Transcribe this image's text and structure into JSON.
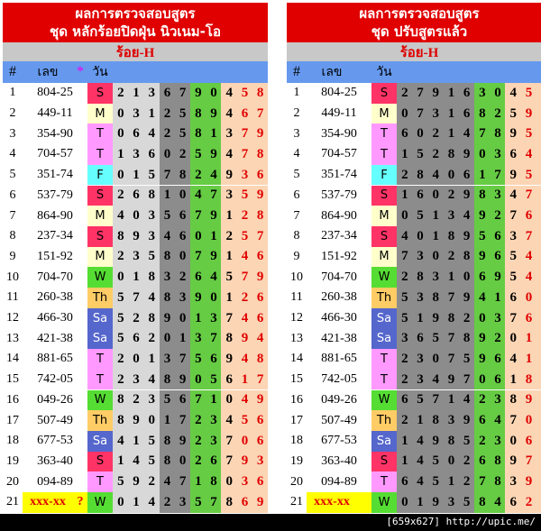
{
  "panels": [
    {
      "title_line1": "ผลการตรวจสอบสูตร",
      "title_line2": "ชุด หลักร้อยปิดฝุ่น นิวเนม-โอ",
      "subtitle": "ร้อย-H",
      "headers": {
        "num": "#",
        "number": "เลข",
        "star": "*",
        "day": "วัน"
      },
      "rows": [
        {
          "n": 1,
          "number": "804-25",
          "day": "S",
          "digits": [
            2,
            1,
            3,
            6,
            7,
            9,
            0,
            4,
            5,
            8
          ]
        },
        {
          "n": 2,
          "number": "449-11",
          "day": "M",
          "digits": [
            0,
            3,
            1,
            2,
            5,
            8,
            9,
            4,
            6,
            7
          ]
        },
        {
          "n": 3,
          "number": "354-90",
          "day": "T",
          "digits": [
            0,
            6,
            4,
            2,
            5,
            8,
            1,
            3,
            7,
            9
          ]
        },
        {
          "n": 4,
          "number": "704-57",
          "day": "T",
          "digits": [
            1,
            3,
            6,
            0,
            2,
            5,
            9,
            4,
            7,
            8
          ]
        },
        {
          "n": 5,
          "number": "351-74",
          "day": "F",
          "digits": [
            0,
            1,
            5,
            7,
            8,
            2,
            4,
            9,
            3,
            6
          ]
        },
        {
          "n": 6,
          "number": "537-79",
          "day": "S",
          "digits": [
            2,
            6,
            8,
            1,
            0,
            4,
            7,
            3,
            5,
            9
          ]
        },
        {
          "n": 7,
          "number": "864-90",
          "day": "M",
          "digits": [
            4,
            0,
            3,
            5,
            6,
            7,
            9,
            1,
            2,
            8
          ]
        },
        {
          "n": 8,
          "number": "237-34",
          "day": "S",
          "digits": [
            8,
            9,
            3,
            4,
            6,
            0,
            1,
            2,
            5,
            7
          ]
        },
        {
          "n": 9,
          "number": "151-92",
          "day": "M",
          "digits": [
            2,
            3,
            5,
            8,
            0,
            7,
            9,
            1,
            4,
            6
          ]
        },
        {
          "n": 10,
          "number": "704-70",
          "day": "W",
          "digits": [
            0,
            1,
            8,
            3,
            2,
            6,
            4,
            5,
            7,
            9
          ]
        },
        {
          "n": 11,
          "number": "260-38",
          "day": "Th",
          "digits": [
            5,
            7,
            4,
            8,
            3,
            9,
            0,
            1,
            2,
            6
          ]
        },
        {
          "n": 12,
          "number": "466-30",
          "day": "Sa",
          "digits": [
            5,
            2,
            8,
            9,
            0,
            1,
            3,
            7,
            4,
            6
          ]
        },
        {
          "n": 13,
          "number": "421-38",
          "day": "Sa",
          "digits": [
            5,
            6,
            2,
            0,
            1,
            3,
            7,
            8,
            9,
            4
          ]
        },
        {
          "n": 14,
          "number": "881-65",
          "day": "T",
          "digits": [
            2,
            0,
            1,
            3,
            7,
            5,
            6,
            9,
            4,
            8
          ]
        },
        {
          "n": 15,
          "number": "742-05",
          "day": "T",
          "digits": [
            2,
            3,
            4,
            8,
            9,
            0,
            5,
            6,
            1,
            7
          ]
        },
        {
          "n": 16,
          "number": "049-26",
          "day": "W",
          "digits": [
            8,
            2,
            3,
            5,
            6,
            7,
            1,
            0,
            4,
            9
          ]
        },
        {
          "n": 17,
          "number": "507-49",
          "day": "Th",
          "digits": [
            8,
            9,
            0,
            1,
            7,
            2,
            3,
            4,
            5,
            6
          ]
        },
        {
          "n": 18,
          "number": "677-53",
          "day": "Sa",
          "digits": [
            4,
            1,
            5,
            8,
            9,
            2,
            3,
            7,
            0,
            6
          ]
        },
        {
          "n": 19,
          "number": "363-40",
          "day": "S",
          "digits": [
            1,
            4,
            5,
            8,
            0,
            2,
            6,
            7,
            9,
            3
          ]
        },
        {
          "n": 20,
          "number": "094-89",
          "day": "T",
          "digits": [
            5,
            9,
            2,
            4,
            7,
            1,
            8,
            0,
            3,
            6
          ]
        },
        {
          "n": 21,
          "number": "xxx-xx",
          "mark": "?",
          "day": "W",
          "digits": [
            0,
            1,
            4,
            2,
            3,
            5,
            7,
            8,
            6,
            9
          ]
        }
      ]
    },
    {
      "title_line1": "ผลการตรวจสอบสูตร",
      "title_line2": "ชุด ปรับสูตรแล้ว",
      "subtitle": "ร้อย-H",
      "headers": {
        "num": "#",
        "number": "เลข",
        "day": "วัน"
      },
      "rows": [
        {
          "n": 1,
          "number": "804-25",
          "day": "S",
          "digits": [
            2,
            7,
            9,
            1,
            6,
            3,
            0,
            4,
            5,
            8
          ]
        },
        {
          "n": 2,
          "number": "449-11",
          "day": "M",
          "digits": [
            0,
            7,
            3,
            1,
            6,
            8,
            2,
            5,
            9,
            4
          ]
        },
        {
          "n": 3,
          "number": "354-90",
          "day": "T",
          "digits": [
            6,
            0,
            2,
            1,
            4,
            7,
            8,
            9,
            5,
            3
          ]
        },
        {
          "n": 4,
          "number": "704-57",
          "day": "T",
          "digits": [
            1,
            5,
            2,
            8,
            9,
            0,
            3,
            6,
            4,
            7
          ]
        },
        {
          "n": 5,
          "number": "351-74",
          "day": "F",
          "digits": [
            2,
            8,
            4,
            0,
            6,
            1,
            7,
            9,
            5,
            3
          ]
        },
        {
          "n": 6,
          "number": "537-79",
          "day": "S",
          "digits": [
            1,
            6,
            0,
            2,
            9,
            8,
            3,
            4,
            7,
            5
          ]
        },
        {
          "n": 7,
          "number": "864-90",
          "day": "M",
          "digits": [
            0,
            5,
            1,
            3,
            4,
            9,
            2,
            7,
            6,
            8
          ]
        },
        {
          "n": 8,
          "number": "237-34",
          "day": "S",
          "digits": [
            4,
            0,
            1,
            8,
            9,
            5,
            6,
            3,
            7,
            2
          ]
        },
        {
          "n": 9,
          "number": "151-92",
          "day": "M",
          "digits": [
            7,
            3,
            0,
            2,
            8,
            9,
            6,
            5,
            4,
            1
          ]
        },
        {
          "n": 10,
          "number": "704-70",
          "day": "W",
          "digits": [
            2,
            8,
            3,
            1,
            0,
            6,
            9,
            5,
            4,
            7
          ]
        },
        {
          "n": 11,
          "number": "260-38",
          "day": "Th",
          "digits": [
            5,
            3,
            8,
            7,
            9,
            4,
            1,
            6,
            0,
            2
          ]
        },
        {
          "n": 12,
          "number": "466-30",
          "day": "Sa",
          "digits": [
            5,
            1,
            9,
            8,
            2,
            0,
            3,
            7,
            6,
            4
          ]
        },
        {
          "n": 13,
          "number": "421-38",
          "day": "Sa",
          "digits": [
            3,
            6,
            5,
            7,
            8,
            9,
            2,
            0,
            1,
            4
          ]
        },
        {
          "n": 14,
          "number": "881-65",
          "day": "T",
          "digits": [
            2,
            3,
            0,
            7,
            5,
            9,
            6,
            4,
            1,
            8
          ]
        },
        {
          "n": 15,
          "number": "742-05",
          "day": "T",
          "digits": [
            2,
            3,
            4,
            9,
            7,
            0,
            6,
            1,
            8,
            5
          ]
        },
        {
          "n": 16,
          "number": "049-26",
          "day": "W",
          "digits": [
            6,
            5,
            7,
            1,
            4,
            2,
            3,
            8,
            9,
            0
          ]
        },
        {
          "n": 17,
          "number": "507-49",
          "day": "Th",
          "digits": [
            2,
            1,
            8,
            3,
            9,
            6,
            4,
            7,
            0,
            5
          ]
        },
        {
          "n": 18,
          "number": "677-53",
          "day": "Sa",
          "digits": [
            1,
            4,
            9,
            8,
            5,
            2,
            3,
            0,
            6,
            7
          ]
        },
        {
          "n": 19,
          "number": "363-40",
          "day": "S",
          "digits": [
            1,
            4,
            5,
            0,
            2,
            6,
            8,
            9,
            7,
            3
          ]
        },
        {
          "n": 20,
          "number": "094-89",
          "day": "T",
          "digits": [
            6,
            4,
            5,
            1,
            2,
            7,
            8,
            3,
            9,
            0
          ]
        },
        {
          "n": 21,
          "number": "xxx-xx",
          "day": "W",
          "digits": [
            0,
            1,
            9,
            3,
            5,
            8,
            4,
            6,
            2,
            7
          ]
        }
      ]
    }
  ],
  "watermark": "[659x627] http://upic.me/"
}
